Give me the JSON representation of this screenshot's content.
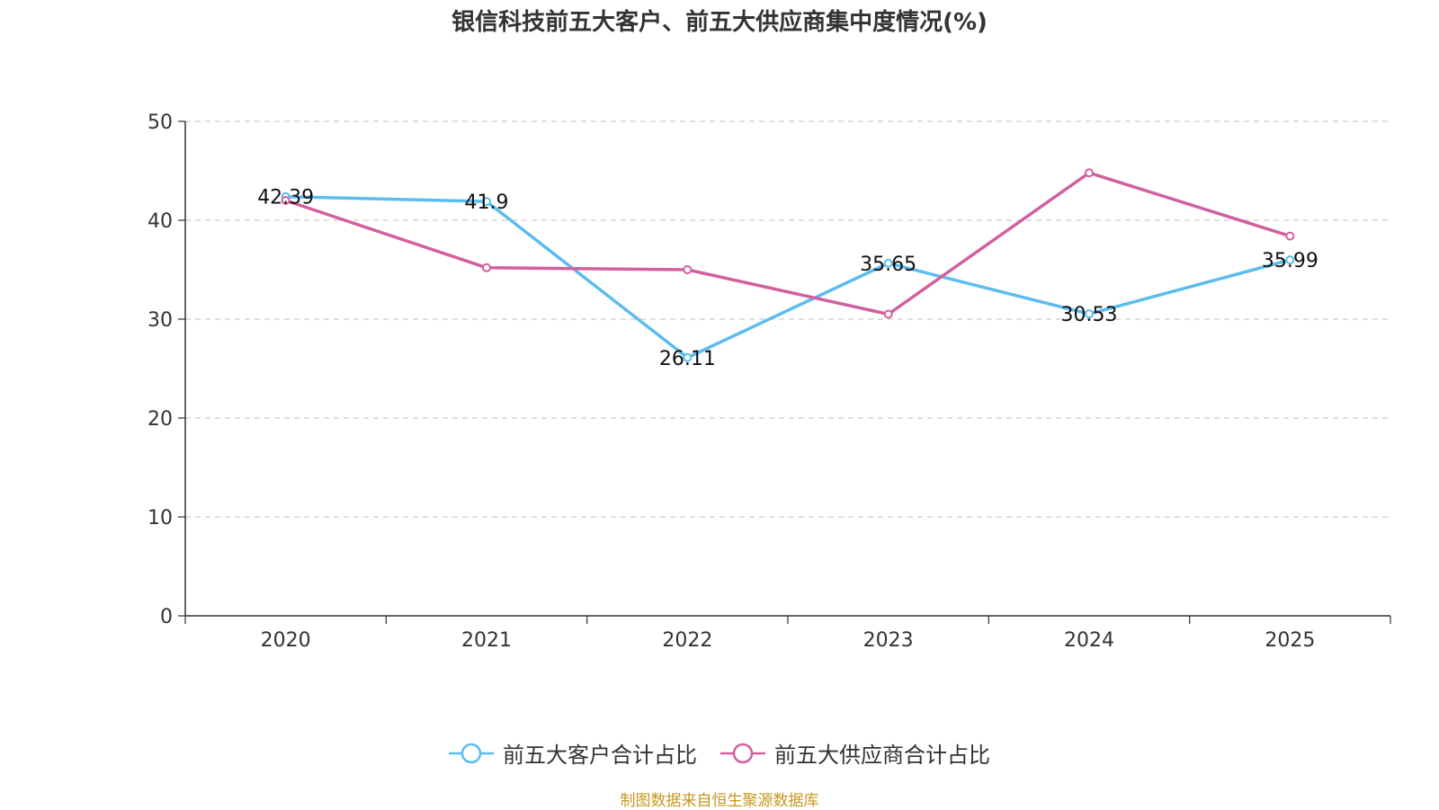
{
  "title": "银信科技前五大客户、前五大供应商集中度情况(%)",
  "source": "制图数据来自恒生聚源数据库",
  "chart_data": {
    "type": "line",
    "categories": [
      "2020",
      "2021",
      "2022",
      "2023",
      "2024",
      "2025"
    ],
    "ylim": [
      0,
      50
    ],
    "yticks": [
      0,
      10,
      20,
      30,
      40,
      50
    ],
    "grid": true,
    "legend_position": "bottom",
    "series": [
      {
        "name": "前五大客户合计占比",
        "color": "#5bbcef",
        "values": [
          42.39,
          41.9,
          26.11,
          35.65,
          30.53,
          35.99
        ],
        "labels": [
          "42.39",
          "41.9",
          "26.11",
          "35.65",
          "30.53",
          "35.99"
        ]
      },
      {
        "name": "前五大供应商合计占比",
        "color": "#d2609f",
        "values": [
          42.0,
          35.2,
          35.0,
          30.5,
          44.8,
          38.4
        ],
        "labels": []
      }
    ]
  }
}
